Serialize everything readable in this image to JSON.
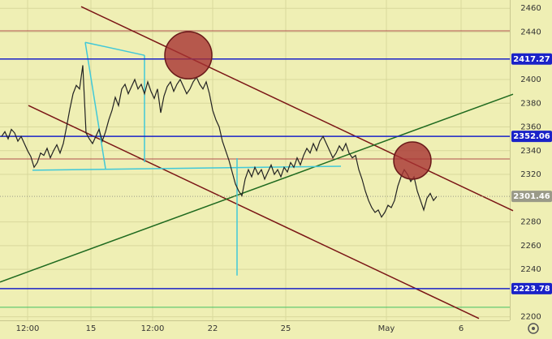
{
  "chart_data": {
    "type": "line",
    "series": [
      {
        "color": "#222222",
        "values": [
          2352,
          2356,
          2350,
          2358,
          2355,
          2348,
          2352,
          2346,
          2340,
          2335,
          2326,
          2330,
          2338,
          2336,
          2342,
          2334,
          2340,
          2345,
          2338,
          2346,
          2360,
          2375,
          2388,
          2395,
          2392,
          2412,
          2355,
          2350,
          2346,
          2352,
          2358,
          2348,
          2356,
          2366,
          2374,
          2385,
          2378,
          2392,
          2396,
          2388,
          2394,
          2400,
          2392,
          2396,
          2388,
          2398,
          2390,
          2384,
          2392,
          2372,
          2386,
          2394,
          2398,
          2390,
          2396,
          2400,
          2394,
          2388,
          2392,
          2398,
          2402,
          2396,
          2392,
          2398,
          2388,
          2374,
          2366,
          2360,
          2348,
          2340,
          2332,
          2322,
          2312,
          2306,
          2302,
          2316,
          2324,
          2318,
          2326,
          2320,
          2324,
          2316,
          2322,
          2328,
          2320,
          2324,
          2318,
          2326,
          2322,
          2330,
          2326,
          2334,
          2328,
          2336,
          2342,
          2338,
          2346,
          2340,
          2348,
          2352,
          2346,
          2340,
          2334,
          2338,
          2344,
          2340,
          2346,
          2338,
          2334,
          2336,
          2324,
          2316,
          2306,
          2298,
          2292,
          2288,
          2290,
          2284,
          2288,
          2294,
          2292,
          2298,
          2310,
          2318,
          2324,
          2320,
          2314,
          2318,
          2306,
          2298,
          2290,
          2300,
          2304,
          2298,
          2301.46
        ]
      }
    ],
    "xlim": [
      -0.5,
      156.5
    ],
    "xticks": [
      {
        "value": 8,
        "label": "12:00"
      },
      {
        "value": 27.5,
        "label": "15"
      },
      {
        "value": 46.5,
        "label": "12:00"
      },
      {
        "value": 65,
        "label": "22"
      },
      {
        "value": 87.5,
        "label": "25"
      },
      {
        "value": 118.5,
        "label": "May"
      },
      {
        "value": 141.5,
        "label": "6"
      }
    ],
    "ylim": [
      2197,
      2467
    ],
    "yticks": [
      2200,
      2240,
      2260,
      2280,
      2320,
      2340,
      2360,
      2380,
      2400,
      2440,
      2460
    ],
    "grid": true,
    "levels": [
      {
        "value": 2417.27,
        "color": "#1a22c8"
      },
      {
        "value": 2352.06,
        "color": "#1a22c8"
      },
      {
        "value": 2301.46,
        "color": "#9a9a88"
      },
      {
        "value": 2223.78,
        "color": "#1a22c8"
      }
    ],
    "hlines": [
      {
        "value": 2441,
        "color": "#b05050"
      },
      {
        "value": 2333,
        "color": "#b05050"
      },
      {
        "value": 2208,
        "color": "#40c060"
      }
    ],
    "trendlines": [
      {
        "color": "#7a1515",
        "start": [
          24.5,
          2461.4
        ],
        "end": [
          157.5,
          2289.4
        ]
      },
      {
        "color": "#7a1515",
        "start": [
          8.25,
          2378.1
        ],
        "end": [
          147,
          2198.6
        ]
      },
      {
        "color": "#1f6a1f",
        "start": [
          -0.5,
          2229.3
        ],
        "end": [
          157.5,
          2387.6
        ]
      },
      {
        "color": "#40c8d8",
        "start": [
          25.75,
          2431.3
        ],
        "end": [
          44,
          2420.4
        ]
      },
      {
        "color": "#40c8d8",
        "start": [
          44,
          2420.4
        ],
        "end": [
          44,
          2330.3
        ]
      },
      {
        "color": "#40c8d8",
        "start": [
          25.75,
          2431.3
        ],
        "end": [
          32,
          2324.8
        ]
      },
      {
        "color": "#40c8d8",
        "start": [
          9.5,
          2323.5
        ],
        "end": [
          104.5,
          2326.9
        ]
      },
      {
        "color": "#40c8d8",
        "start": [
          72.5,
          2333.7
        ],
        "end": [
          72.5,
          2234.8
        ]
      }
    ],
    "circles": [
      {
        "color": "#a83232",
        "center": [
          57.5,
          2420.4
        ]
      },
      {
        "color": "#a83232",
        "center": [
          126.5,
          2331.7
        ]
      }
    ]
  }
}
